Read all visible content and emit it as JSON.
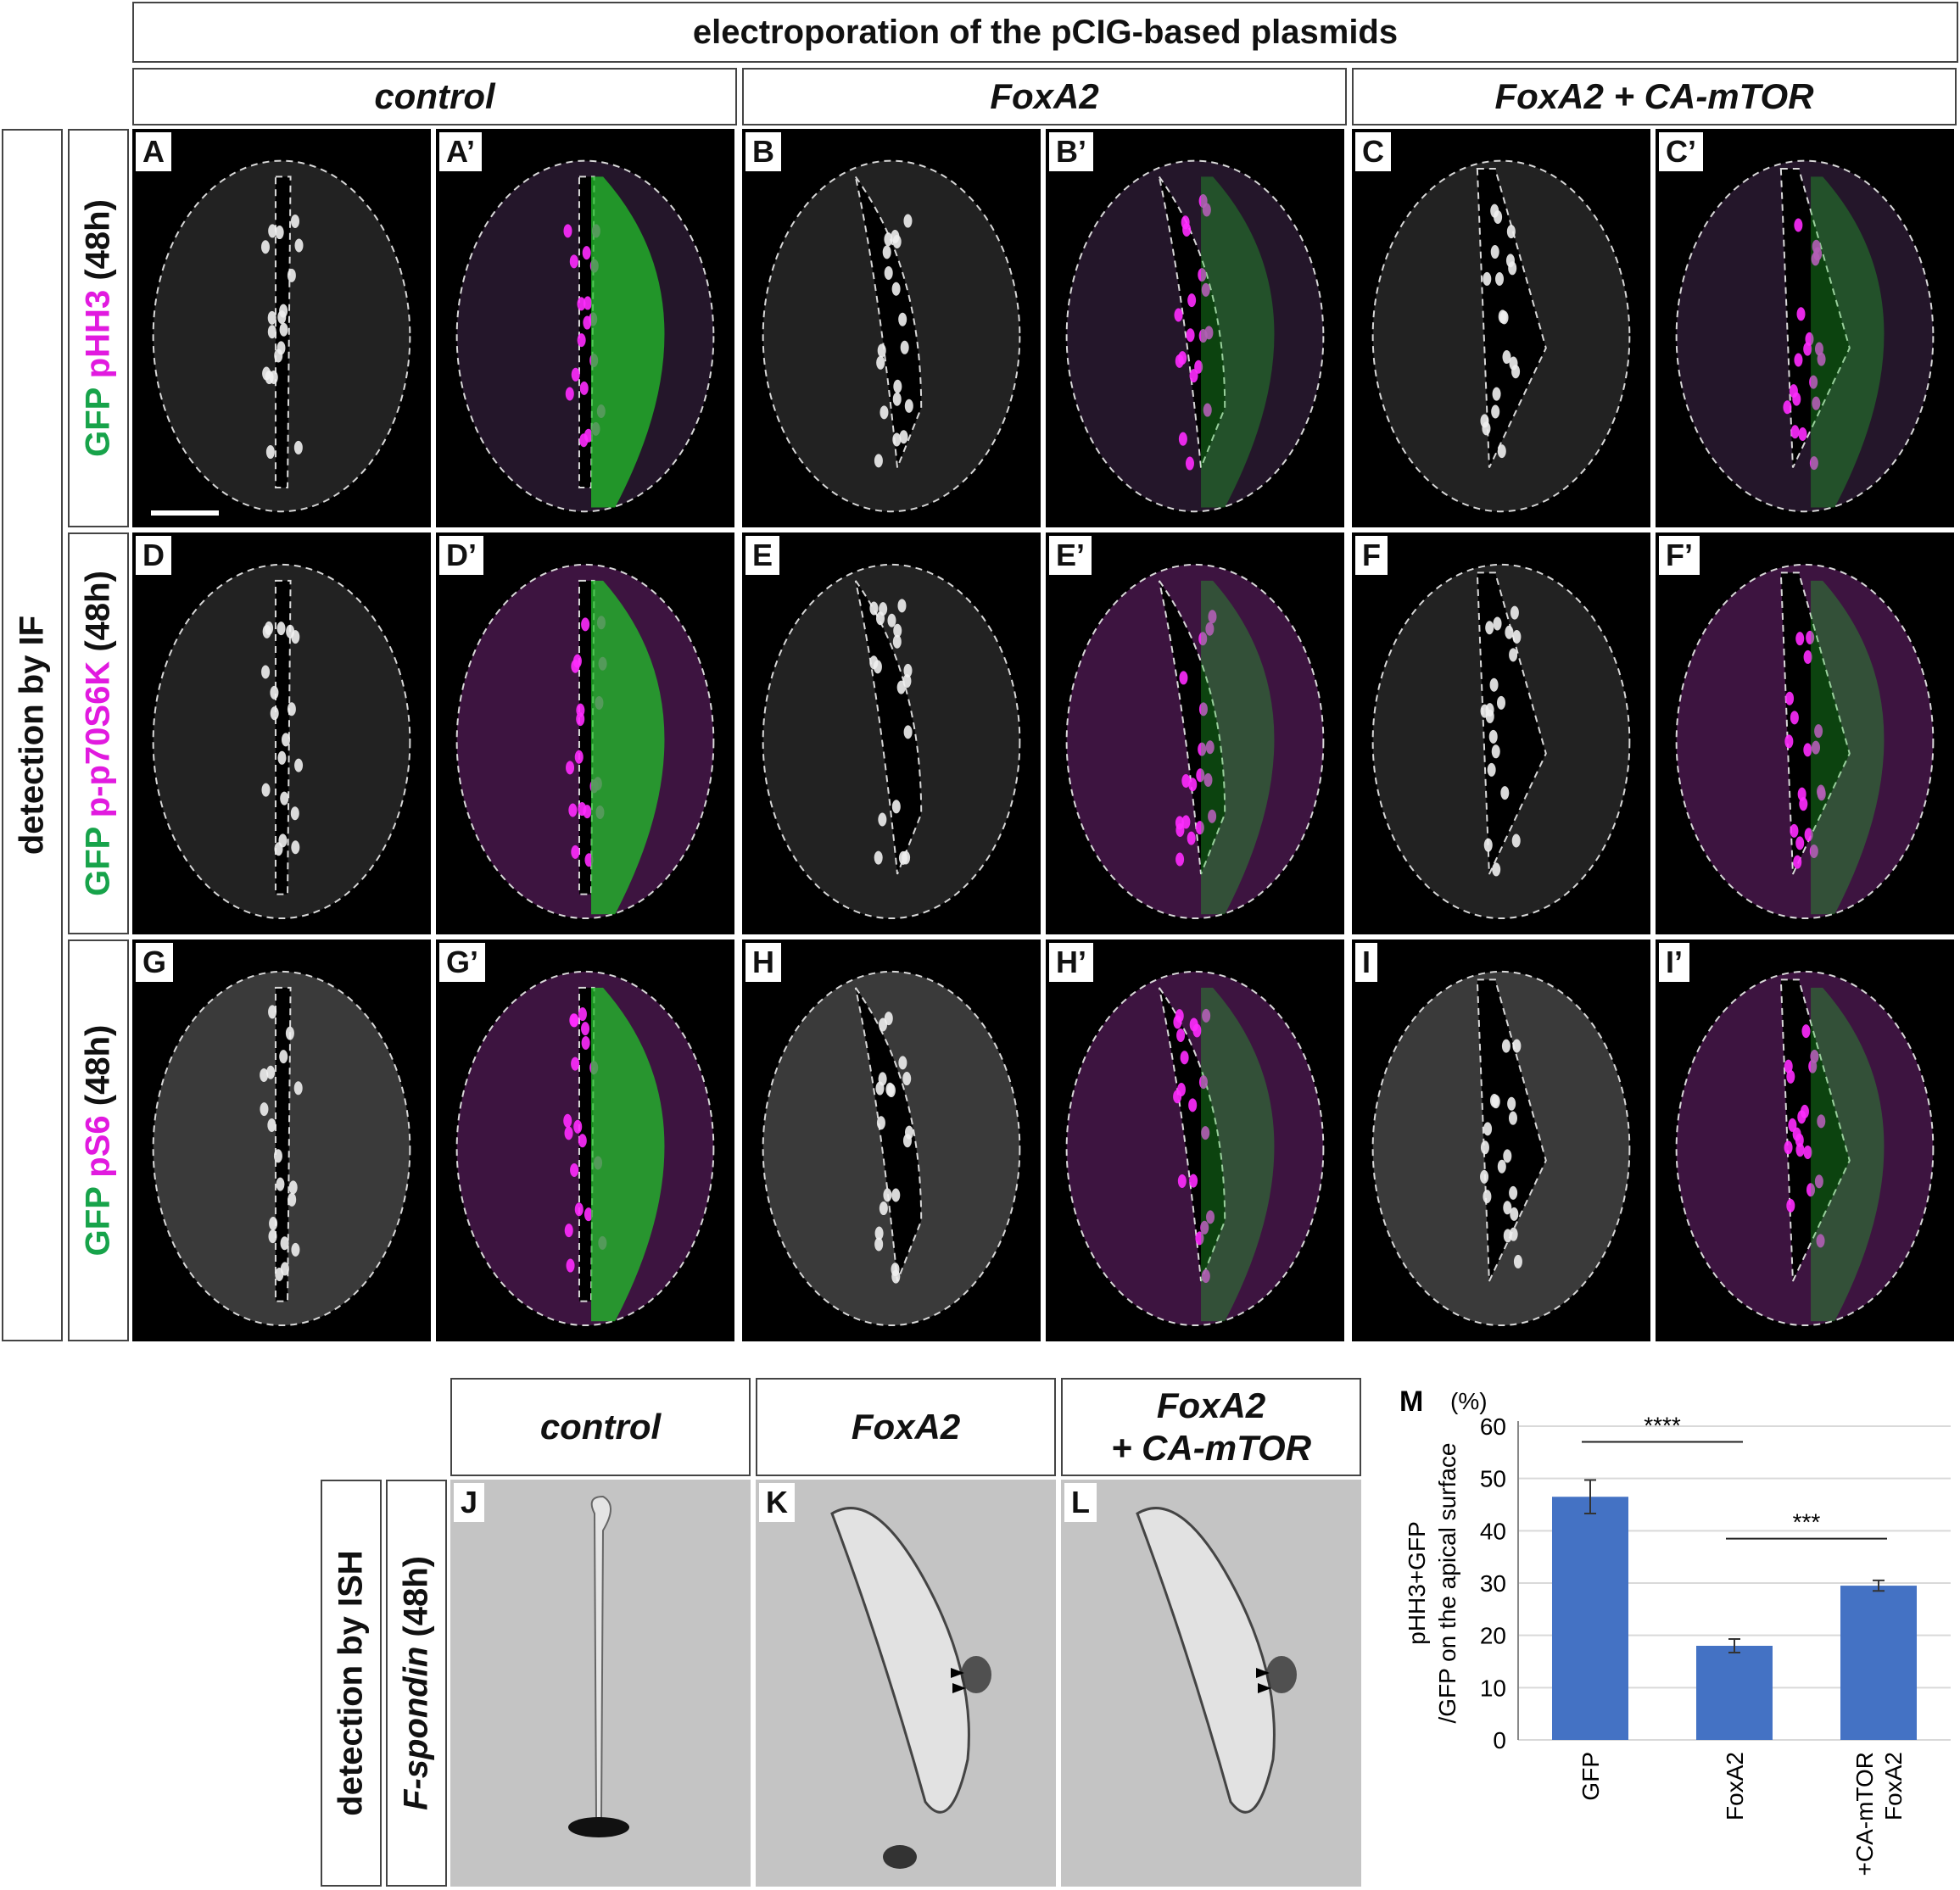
{
  "figure": {
    "top_header": "electroporation of the pCIG-based plasmids",
    "columns": [
      "control",
      "FoxA2",
      "FoxA2 + CA-mTOR"
    ],
    "if_side_label": "detection by IF",
    "if_rows": [
      {
        "gfp": "GFP",
        "marker": "pHH3",
        "time": "(48h)"
      },
      {
        "gfp": "GFP",
        "marker": "p-p70S6K",
        "time": "(48h)"
      },
      {
        "gfp": "GFP",
        "marker": "pS6",
        "time": "(48h)"
      }
    ],
    "panel_labels": {
      "row1": [
        "A",
        "A’",
        "B",
        "B’",
        "C",
        "C’"
      ],
      "row2": [
        "D",
        "D’",
        "E",
        "E’",
        "F",
        "F’"
      ],
      "row3": [
        "G",
        "G’",
        "H",
        "H’",
        "I",
        "I’"
      ]
    },
    "ish": {
      "columns": [
        "control",
        "FoxA2",
        "FoxA2",
        "+ CA-mTOR"
      ],
      "side_label": "detection by ISH",
      "gene_label": "F-spondin",
      "time": "(48h)",
      "panel_labels": [
        "J",
        "K",
        "L"
      ]
    }
  },
  "chart_data": {
    "type": "bar",
    "panel_label": "M",
    "unit": "(%)",
    "ylabel_line1": "pHH3+GFP",
    "ylabel_line2": "/GFP on the apical surface",
    "categories": [
      "GFP",
      "FoxA2",
      "FoxA2\n+CA-mTOR"
    ],
    "category_lines": [
      [
        "GFP"
      ],
      [
        "FoxA2"
      ],
      [
        "FoxA2",
        "+CA-mTOR"
      ]
    ],
    "values": [
      46.5,
      18,
      29.5
    ],
    "errors": [
      3.2,
      1.3,
      1.0
    ],
    "ylim": [
      0,
      60
    ],
    "yticks": [
      "0",
      "10",
      "20",
      "30",
      "40",
      "50",
      "60"
    ],
    "significance": [
      {
        "from": 0,
        "to": 1,
        "label": "****"
      },
      {
        "from": 1,
        "to": 2,
        "label": "***"
      }
    ],
    "bar_color": "#4472c4",
    "grid": true
  }
}
